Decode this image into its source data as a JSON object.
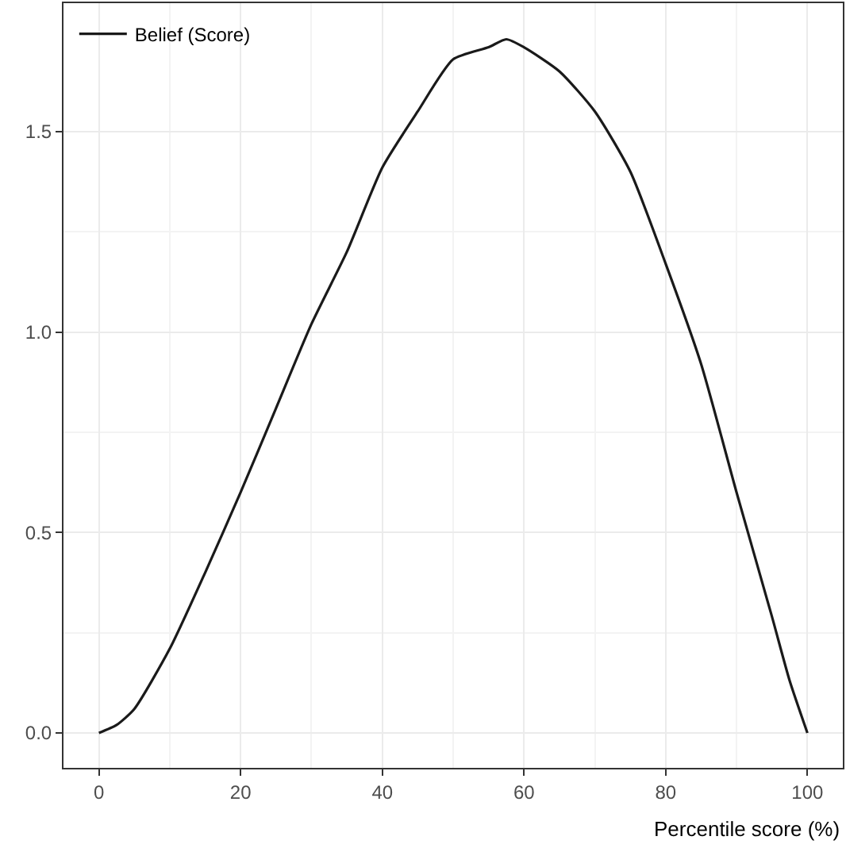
{
  "chart_data": {
    "type": "line",
    "xlabel": "Percentile score (%)",
    "x": [
      0,
      2.5,
      5,
      10,
      15,
      20,
      25,
      30,
      35,
      40,
      45,
      50,
      55,
      57.5,
      60,
      65,
      70,
      75,
      80,
      85,
      90,
      95,
      97.5,
      100
    ],
    "series": [
      {
        "name": "Belief (Score)",
        "color": "#1a1a1a",
        "values": [
          0,
          0.02,
          0.06,
          0.21,
          0.4,
          0.6,
          0.81,
          1.02,
          1.2,
          1.41,
          1.55,
          1.68,
          1.71,
          1.73,
          1.71,
          1.65,
          1.55,
          1.4,
          1.17,
          0.92,
          0.6,
          0.29,
          0.13,
          0
        ]
      }
    ],
    "xlim": [
      -5,
      105
    ],
    "xticks": [
      0,
      20,
      40,
      60,
      80,
      100
    ],
    "ylim": [
      -0.087,
      1.82
    ],
    "yticks": [
      {
        "value": 0,
        "label": "0.0"
      },
      {
        "value": 0.5,
        "label": "0.5"
      },
      {
        "value": 1,
        "label": "1.0"
      },
      {
        "value": 1.5,
        "label": "1.5"
      }
    ],
    "grid": true,
    "legend": "top left",
    "marker": "none",
    "line_style": "solid"
  }
}
